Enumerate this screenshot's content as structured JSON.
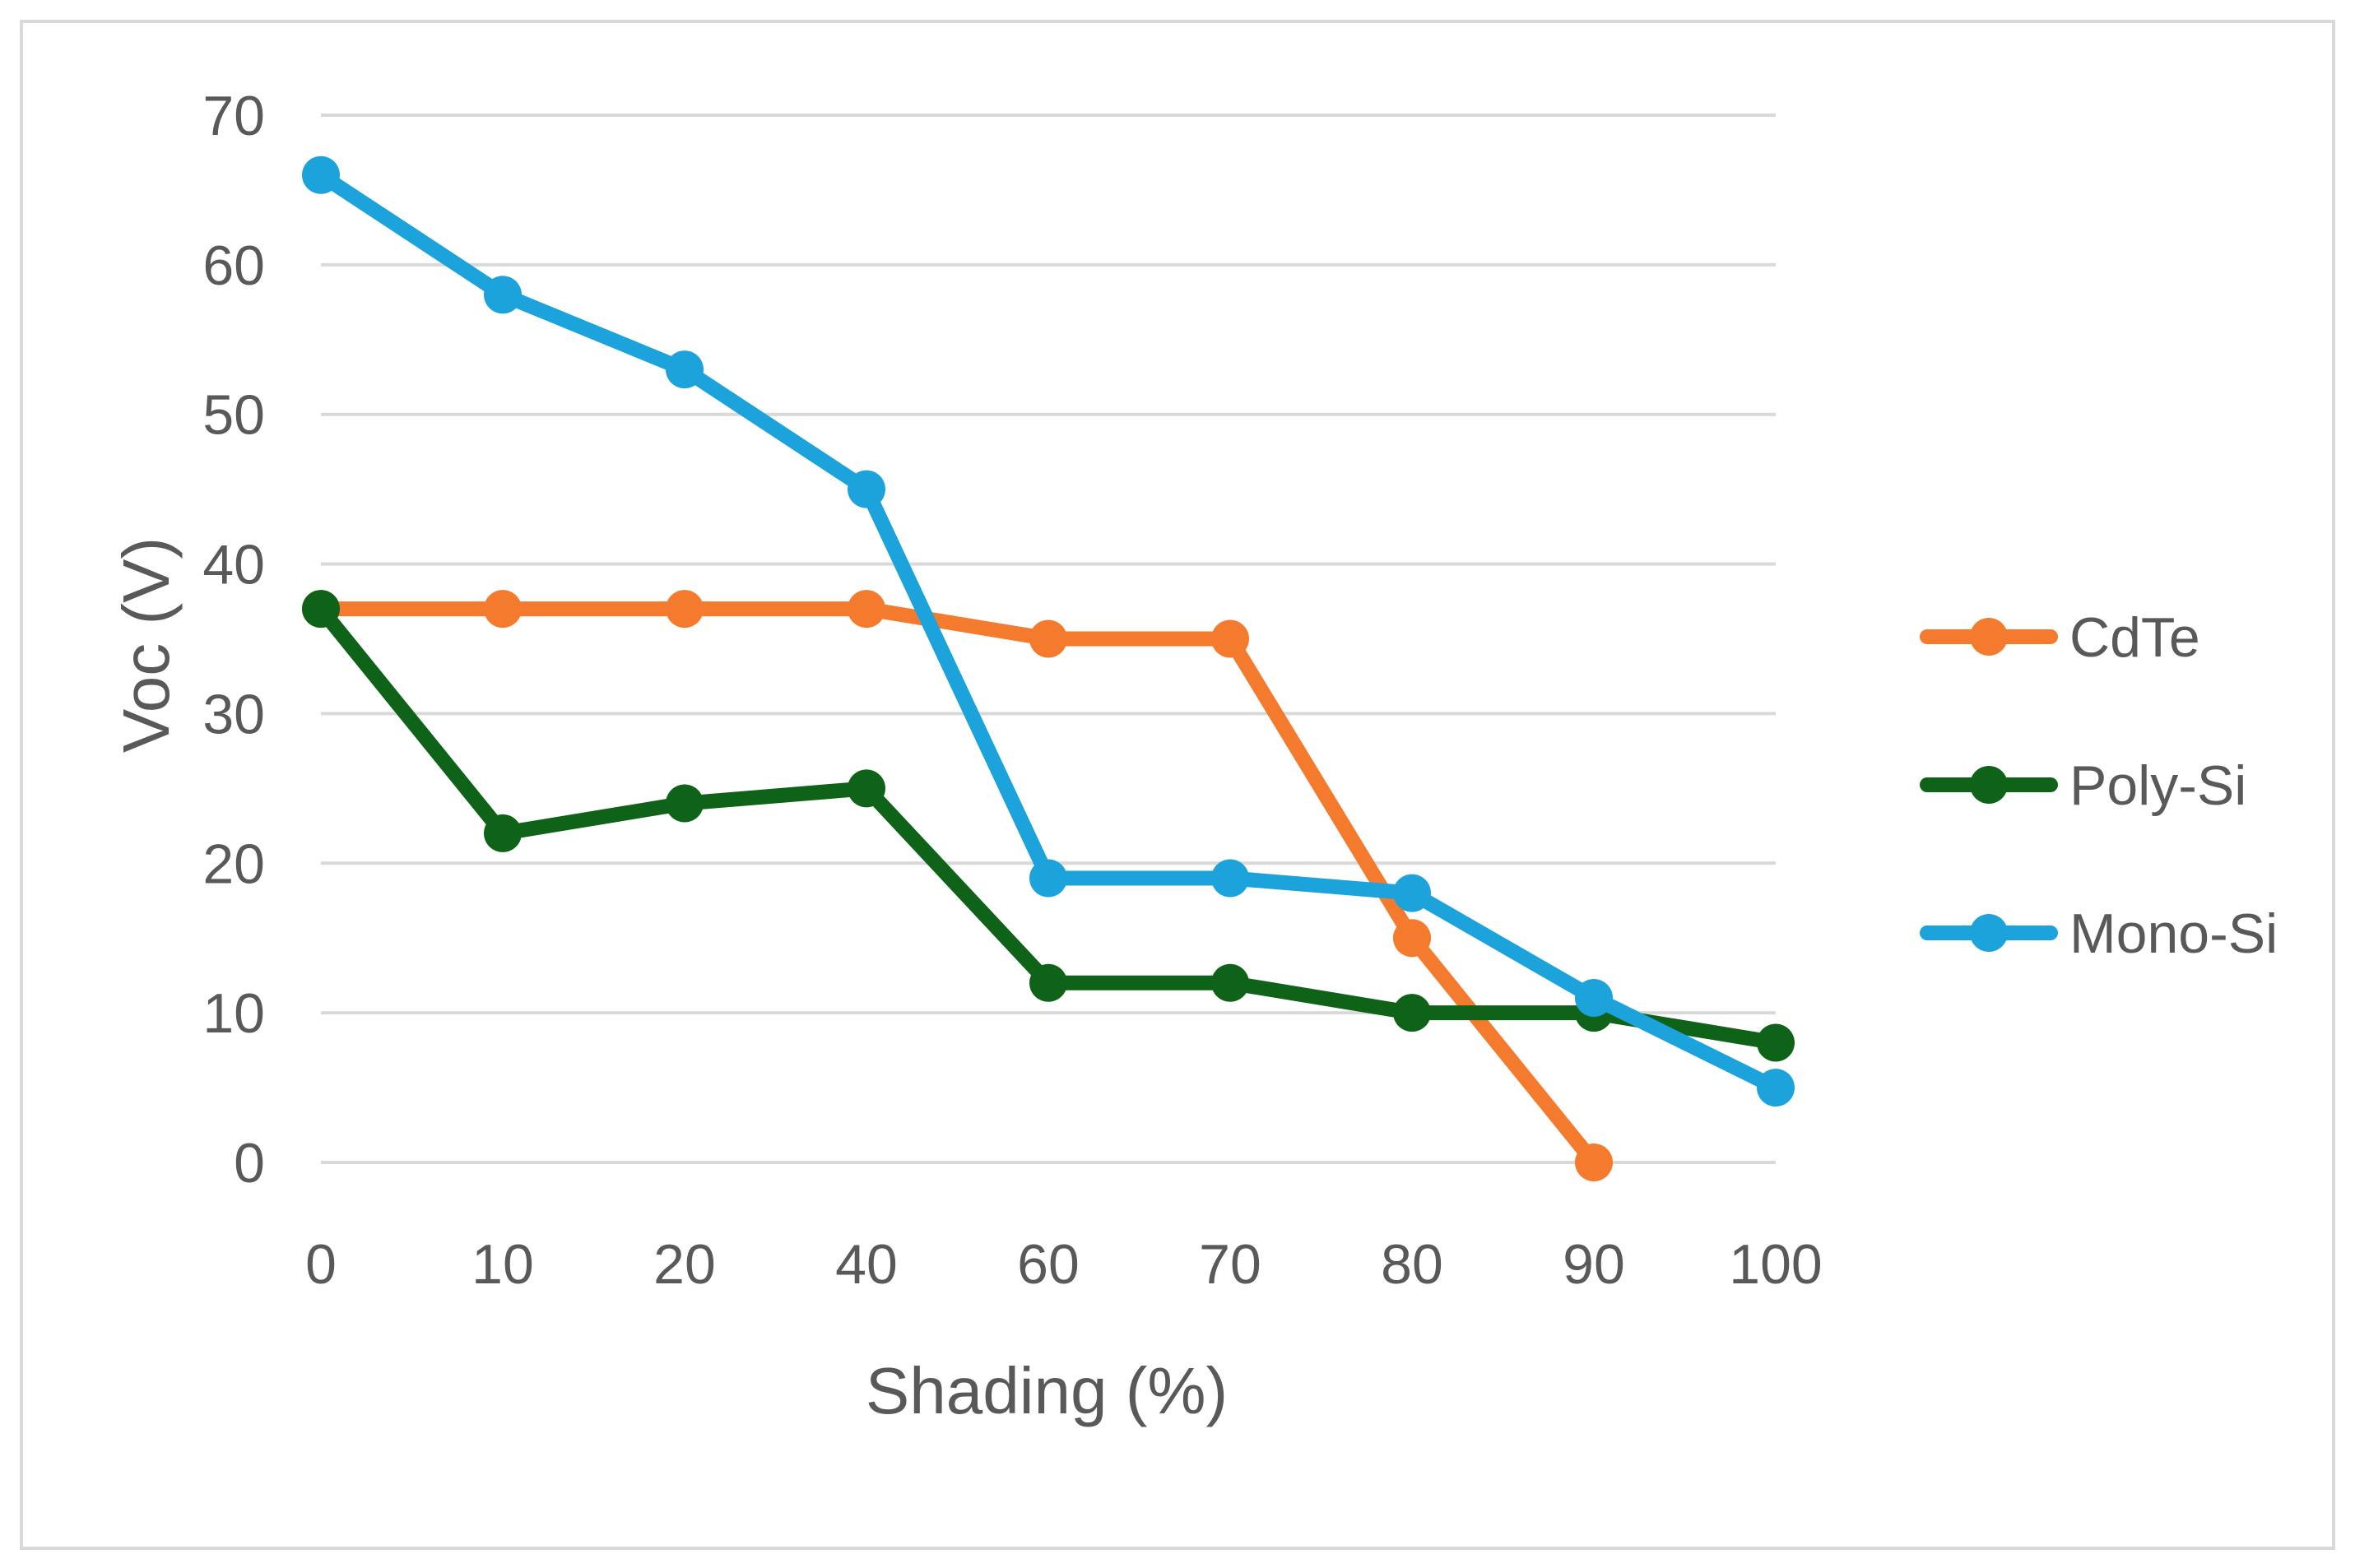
{
  "chart_data": {
    "type": "line",
    "title": "",
    "xlabel": "Shading (%)",
    "ylabel": "Voc (V)",
    "categories": [
      "0",
      "10",
      "20",
      "40",
      "60",
      "70",
      "80",
      "90",
      "100"
    ],
    "ylim": [
      0,
      70
    ],
    "yticks": [
      0,
      10,
      20,
      30,
      40,
      50,
      60,
      70
    ],
    "grid": true,
    "legend_position": "right",
    "series": [
      {
        "name": "CdTe",
        "color": "#F47A2E",
        "values": [
          37,
          37,
          37,
          37,
          35,
          35,
          15,
          0,
          null
        ]
      },
      {
        "name": "Poly-Si",
        "color": "#0E6318",
        "values": [
          37,
          22,
          24,
          25,
          12,
          12,
          10,
          10,
          8
        ]
      },
      {
        "name": "Mono-Si",
        "color": "#1CA3DB",
        "values": [
          66,
          58,
          53,
          45,
          19,
          19,
          18,
          11,
          5
        ]
      }
    ]
  }
}
